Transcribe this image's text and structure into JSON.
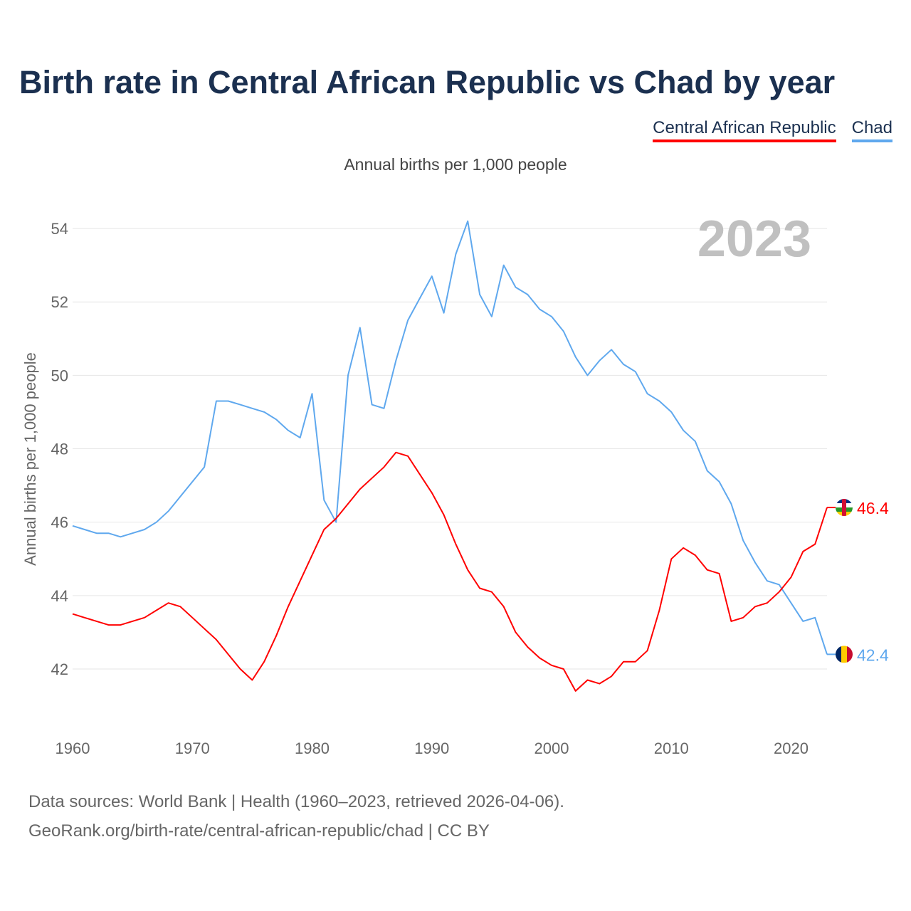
{
  "title": "Birth rate in Central African Republic vs Chad by year",
  "subtitle": "Annual births per 1,000 people",
  "year_watermark": "2023",
  "footer": {
    "line1": "Data sources: World Bank | Health (1960–2023, retrieved 2026-04-06).",
    "line2": "GeoRank.org/birth-rate/central-african-republic/chad | CC BY"
  },
  "chart_data": {
    "type": "line",
    "title": "Birth rate in Central African Republic vs Chad by year",
    "xlabel": "",
    "ylabel": "Annual births per 1,000 people",
    "xlim": [
      1960,
      2023
    ],
    "ylim": [
      42,
      54
    ],
    "xticks": [
      "1960",
      "1970",
      "1980",
      "1990",
      "2000",
      "2010",
      "2020"
    ],
    "yticks": [
      "42",
      "44",
      "46",
      "48",
      "50",
      "52",
      "54"
    ],
    "grid": true,
    "legend_position": "top-right",
    "x_start": 1960,
    "series": [
      {
        "name": "Central African Republic",
        "color": "#ff0000",
        "end_label": "46.4",
        "values": [
          43.5,
          43.4,
          43.3,
          43.2,
          43.2,
          43.3,
          43.4,
          43.6,
          43.8,
          43.7,
          43.4,
          43.1,
          42.8,
          42.4,
          42.0,
          41.7,
          42.2,
          42.9,
          43.7,
          44.4,
          45.1,
          45.8,
          46.1,
          46.5,
          46.9,
          47.2,
          47.5,
          47.9,
          47.8,
          47.3,
          46.8,
          46.2,
          45.4,
          44.7,
          44.2,
          44.1,
          43.7,
          43.0,
          42.6,
          42.3,
          42.1,
          42.0,
          41.4,
          41.7,
          41.6,
          41.8,
          42.2,
          42.2,
          42.5,
          43.6,
          45.0,
          45.3,
          45.1,
          44.7,
          44.6,
          43.3,
          43.4,
          43.7,
          43.8,
          44.1,
          44.5,
          45.2,
          45.4,
          46.4
        ]
      },
      {
        "name": "Chad",
        "color": "#5fa8ee",
        "end_label": "42.4",
        "values": [
          45.9,
          45.8,
          45.7,
          45.7,
          45.6,
          45.7,
          45.8,
          46.0,
          46.3,
          46.7,
          47.1,
          47.5,
          49.3,
          49.3,
          49.2,
          49.1,
          49.0,
          48.8,
          48.5,
          48.3,
          49.5,
          46.6,
          46.0,
          50.0,
          51.3,
          49.2,
          49.1,
          50.4,
          51.5,
          52.1,
          52.7,
          51.7,
          53.3,
          54.2,
          52.2,
          51.6,
          53.0,
          52.4,
          52.2,
          51.8,
          51.6,
          51.2,
          50.5,
          50.0,
          50.4,
          50.7,
          50.3,
          50.1,
          49.5,
          49.3,
          49.0,
          48.5,
          48.2,
          47.4,
          47.1,
          46.5,
          45.5,
          44.9,
          44.4,
          44.3,
          43.8,
          43.3,
          43.4,
          42.4
        ]
      }
    ]
  }
}
